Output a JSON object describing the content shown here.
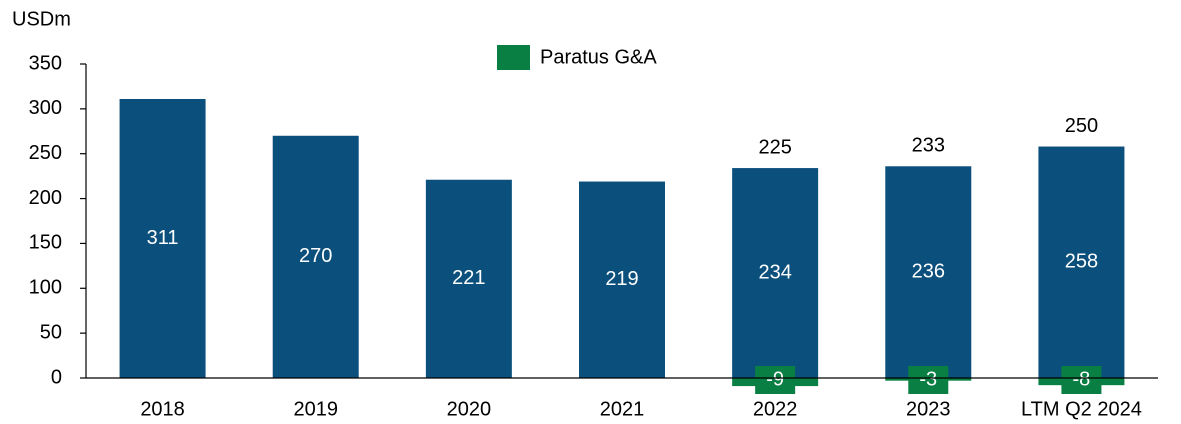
{
  "chart_data": {
    "type": "bar",
    "stacked": true,
    "y_axis_label": "USDm",
    "categories": [
      "2018",
      "2019",
      "2020",
      "2021",
      "2022",
      "2023",
      "LTM Q2 2024"
    ],
    "series": [
      {
        "color": "#0b4f7c",
        "values": [
          311,
          270,
          221,
          219,
          234,
          236,
          258
        ]
      },
      {
        "name": "Paratus G&A",
        "color": "#0a7f43",
        "values": [
          null,
          null,
          null,
          null,
          -9,
          -3,
          -8
        ]
      }
    ],
    "totals": [
      null,
      null,
      null,
      null,
      225,
      233,
      250
    ],
    "ylim": [
      0,
      350
    ],
    "yticks": [
      0,
      50,
      100,
      150,
      200,
      250,
      300,
      350
    ],
    "grid": false,
    "legend": "top"
  }
}
